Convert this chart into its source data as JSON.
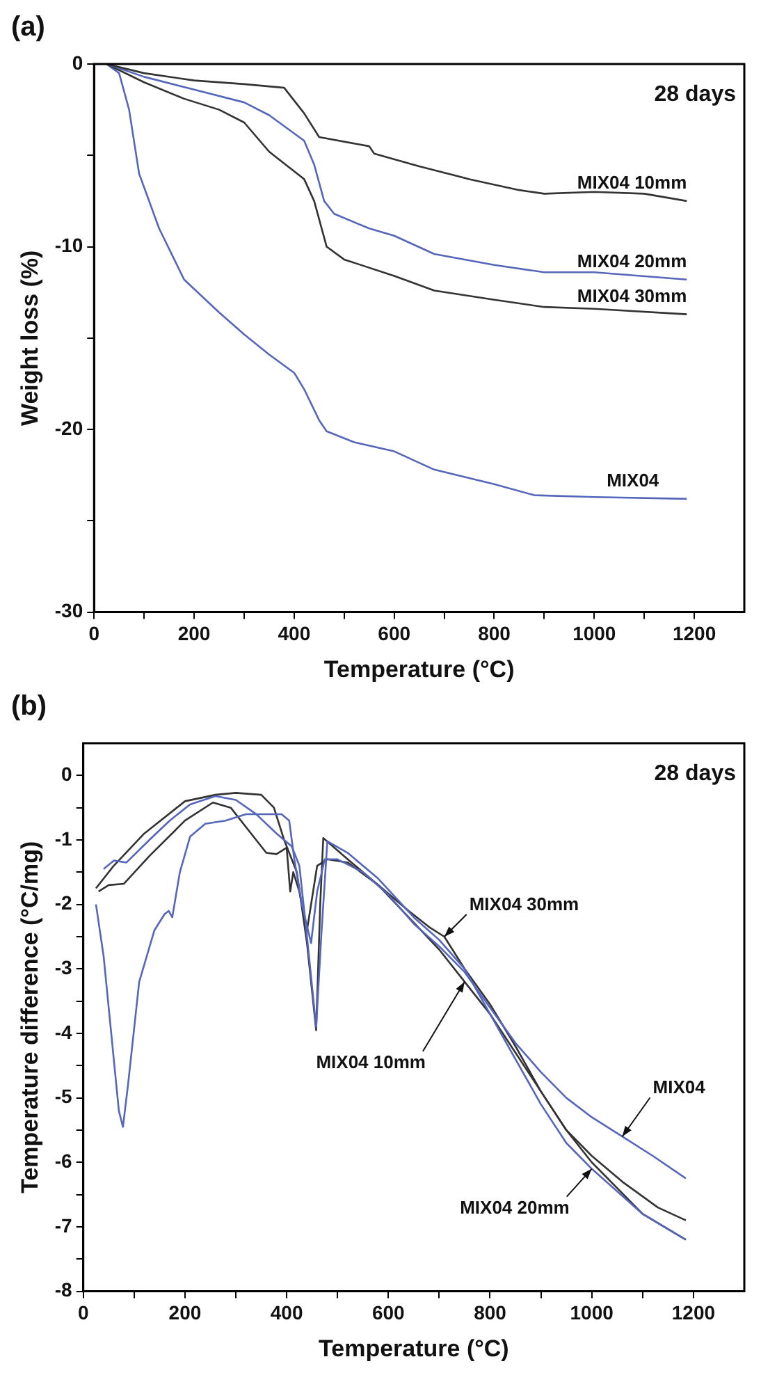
{
  "chart_data": [
    {
      "type": "line",
      "title": "(a)",
      "xlabel": "Temperature (°C)",
      "ylabel": "Weight loss (%)",
      "annotations": [
        "28 days"
      ],
      "xlim": [
        0,
        1300
      ],
      "ylim": [
        -30,
        0
      ],
      "xticks": [
        0,
        {
          "value": 100,
          "label": null
        },
        200,
        {
          "value": 300,
          "label": null
        },
        400,
        {
          "value": 500,
          "label": null
        },
        600,
        {
          "value": 700,
          "label": null
        },
        800,
        {
          "value": 900,
          "label": null
        },
        1000,
        {
          "value": 1100,
          "label": null
        },
        1200
      ],
      "yticks": [
        -30,
        {
          "value": -25,
          "label": null
        },
        -20,
        {
          "value": -15,
          "label": null
        },
        -10,
        {
          "value": -5,
          "label": null
        },
        0
      ],
      "grid": false,
      "legend": false,
      "marker": "none",
      "line_style": "solid",
      "series": [
        {
          "name": "MIX04 10mm",
          "color": "#333333",
          "x": [
            25,
            100,
            200,
            300,
            380,
            420,
            450,
            550,
            560,
            650,
            750,
            850,
            900,
            1000,
            1100,
            1185
          ],
          "values": [
            0,
            -0.5,
            -0.9,
            -1.1,
            -1.3,
            -2.7,
            -4.0,
            -4.5,
            -4.9,
            -5.6,
            -6.3,
            -6.9,
            -7.1,
            -7.0,
            -7.1,
            -7.5
          ]
        },
        {
          "name": "MIX04 20mm",
          "color": "#5566bb",
          "x": [
            25,
            100,
            200,
            300,
            350,
            420,
            440,
            460,
            480,
            550,
            600,
            680,
            800,
            900,
            1000,
            1185
          ],
          "values": [
            0,
            -0.7,
            -1.4,
            -2.1,
            -2.8,
            -4.2,
            -5.5,
            -7.5,
            -8.2,
            -9.0,
            -9.4,
            -10.4,
            -11.0,
            -11.4,
            -11.4,
            -11.8
          ]
        },
        {
          "name": "MIX04 30mm",
          "color": "#333333",
          "x": [
            25,
            100,
            180,
            250,
            300,
            350,
            420,
            440,
            465,
            500,
            600,
            680,
            800,
            900,
            1000,
            1185
          ],
          "values": [
            0,
            -1.0,
            -1.9,
            -2.5,
            -3.2,
            -4.8,
            -6.3,
            -7.5,
            -10.0,
            -10.7,
            -11.6,
            -12.4,
            -12.9,
            -13.3,
            -13.4,
            -13.7
          ]
        },
        {
          "name": "MIX04",
          "color": "#5566bb",
          "x": [
            25,
            50,
            70,
            90,
            130,
            180,
            250,
            300,
            350,
            400,
            420,
            450,
            465,
            520,
            600,
            680,
            800,
            880,
            1000,
            1185
          ],
          "values": [
            0,
            -0.5,
            -2.5,
            -6.0,
            -9.0,
            -11.8,
            -13.6,
            -14.8,
            -15.9,
            -16.9,
            -17.8,
            -19.5,
            -20.1,
            -20.7,
            -21.2,
            -22.2,
            -23.0,
            -23.6,
            -23.7,
            -23.8
          ]
        }
      ]
    },
    {
      "type": "line",
      "title": "(b)",
      "xlabel": "Temperature (°C)",
      "ylabel": "Temperature difference (°C/mg)",
      "annotations": [
        "28 days"
      ],
      "xlim": [
        0,
        1300
      ],
      "ylim": [
        -8,
        0.5
      ],
      "xticks": [
        0,
        {
          "value": 100,
          "label": null
        },
        200,
        {
          "value": 300,
          "label": null
        },
        400,
        {
          "value": 500,
          "label": null
        },
        600,
        {
          "value": 700,
          "label": null
        },
        800,
        {
          "value": 900,
          "label": null
        },
        1000,
        {
          "value": 1100,
          "label": null
        },
        1200
      ],
      "yticks": [
        -8,
        {
          "value": -7.5,
          "label": null
        },
        -7,
        {
          "value": -6.5,
          "label": null
        },
        -6,
        {
          "value": -5.5,
          "label": null
        },
        -5,
        {
          "value": -4.5,
          "label": null
        },
        -4,
        {
          "value": -3.5,
          "label": null
        },
        -3,
        {
          "value": -2.5,
          "label": null
        },
        -2,
        {
          "value": -1.5,
          "label": null
        },
        -1,
        {
          "value": -0.5,
          "label": null
        },
        0
      ],
      "grid": false,
      "legend": false,
      "marker": "none",
      "line_style": "solid",
      "series": [
        {
          "name": "MIX04",
          "color": "#5566bb",
          "x": [
            25,
            40,
            55,
            70,
            78,
            88,
            110,
            140,
            160,
            168,
            175,
            190,
            210,
            240,
            280,
            320,
            390,
            405,
            415,
            430,
            448,
            460,
            475,
            500,
            550,
            600,
            650,
            700,
            750,
            800,
            850,
            900,
            950,
            1000,
            1060,
            1120,
            1185
          ],
          "values": [
            -2.0,
            -2.8,
            -4.0,
            -5.2,
            -5.45,
            -4.8,
            -3.2,
            -2.4,
            -2.15,
            -2.1,
            -2.2,
            -1.5,
            -0.95,
            -0.75,
            -0.7,
            -0.6,
            -0.6,
            -0.7,
            -1.3,
            -2.0,
            -2.6,
            -1.8,
            -1.3,
            -1.3,
            -1.5,
            -1.85,
            -2.3,
            -2.65,
            -3.05,
            -3.6,
            -4.15,
            -4.6,
            -5.0,
            -5.3,
            -5.6,
            -5.9,
            -6.25
          ]
        },
        {
          "name": "MIX04 20mm",
          "color": "#5566bb",
          "x": [
            40,
            60,
            85,
            130,
            170,
            210,
            260,
            300,
            340,
            380,
            410,
            425,
            440,
            458,
            468,
            480,
            520,
            580,
            650,
            700,
            750,
            800,
            850,
            900,
            950,
            1000,
            1100,
            1185
          ],
          "values": [
            -1.45,
            -1.32,
            -1.35,
            -1.0,
            -0.7,
            -0.45,
            -0.32,
            -0.38,
            -0.6,
            -0.9,
            -1.1,
            -1.4,
            -2.5,
            -3.9,
            -2.5,
            -1.02,
            -1.2,
            -1.6,
            -2.2,
            -2.55,
            -3.0,
            -3.7,
            -4.4,
            -5.1,
            -5.7,
            -6.1,
            -6.8,
            -7.2
          ]
        },
        {
          "name": "MIX04 30mm",
          "color": "#333333",
          "x": [
            30,
            50,
            80,
            130,
            200,
            255,
            290,
            330,
            360,
            380,
            400,
            407,
            413,
            425,
            440,
            460,
            480,
            520,
            580,
            640,
            680,
            710,
            750,
            800,
            850,
            900,
            950,
            1000,
            1060,
            1130,
            1185
          ],
          "values": [
            -1.8,
            -1.7,
            -1.68,
            -1.25,
            -0.7,
            -0.42,
            -0.5,
            -0.9,
            -1.2,
            -1.22,
            -1.12,
            -1.8,
            -1.5,
            -1.8,
            -2.4,
            -1.4,
            -1.3,
            -1.35,
            -1.7,
            -2.1,
            -2.35,
            -2.5,
            -3.0,
            -3.55,
            -4.2,
            -4.9,
            -5.5,
            -5.9,
            -6.3,
            -6.7,
            -6.9
          ]
        },
        {
          "name": "MIX04 10mm",
          "color": "#333333",
          "x": [
            25,
            60,
            120,
            200,
            260,
            300,
            350,
            375,
            395,
            420,
            440,
            458,
            466,
            472,
            520,
            580,
            640,
            700,
            750,
            800,
            850,
            900,
            950,
            1000,
            1100,
            1185
          ],
          "values": [
            -1.75,
            -1.4,
            -0.9,
            -0.4,
            -0.3,
            -0.27,
            -0.3,
            -0.5,
            -1.0,
            -1.5,
            -2.6,
            -3.95,
            -2.0,
            -0.97,
            -1.3,
            -1.7,
            -2.2,
            -2.7,
            -3.2,
            -3.7,
            -4.3,
            -4.9,
            -5.5,
            -6.0,
            -6.8,
            -7.2
          ]
        }
      ]
    }
  ]
}
